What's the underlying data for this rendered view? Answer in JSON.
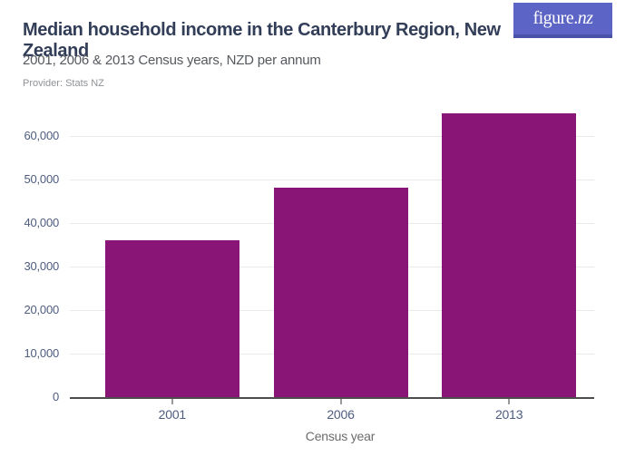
{
  "logo": {
    "text": "figure.nz",
    "text_regular": "figure.",
    "text_italic": "nz",
    "bg_color": "#5c64c5",
    "border_color": "#4a51a8",
    "text_color": "#ffffff"
  },
  "header": {
    "title": "Median household income in the Canterbury Region, New Zealand",
    "subtitle": "2001, 2006 & 2013 Census years, NZD per annum",
    "provider": "Provider: Stats NZ"
  },
  "chart_data": {
    "type": "bar",
    "title": "Median household income in the Canterbury Region, New Zealand",
    "subtitle": "2001, 2006 & 2013 Census years, NZD per annum",
    "provider": "Stats NZ",
    "categories": [
      "2001",
      "2006",
      "2013"
    ],
    "values": [
      36000,
      48200,
      65300
    ],
    "xlabel": "Census year",
    "ylabel": "",
    "ylim": [
      0,
      65500
    ],
    "ytick_interval": 10000,
    "ytick_labels": [
      "0",
      "10,000",
      "20,000",
      "30,000",
      "40,000",
      "50,000",
      "60,000"
    ],
    "grid": true,
    "legend": false,
    "bar_color": "#891677",
    "axis_label_color": "#4e5c80",
    "xaxis_title_color": "#6b6b6b",
    "gridline_color": "#e9e9e9",
    "baseline_color": "#4d4d4d"
  }
}
